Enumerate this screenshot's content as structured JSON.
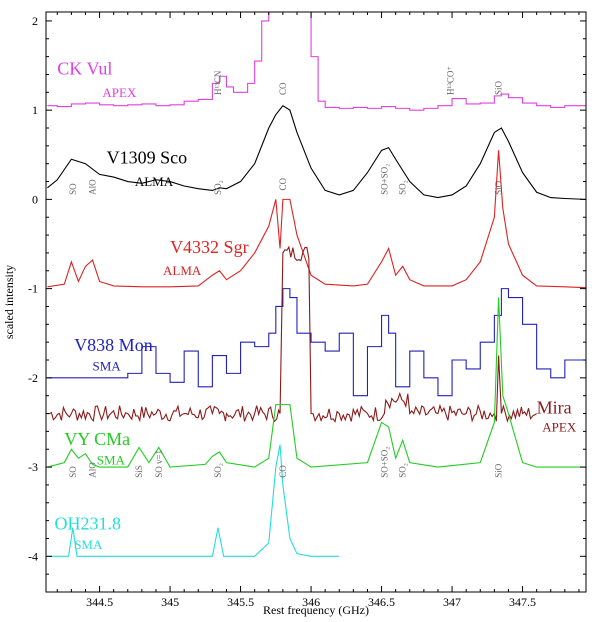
{
  "chart_data": {
    "type": "line",
    "xlabel": "Rest frequency (GHz)",
    "ylabel": "scaled intensity",
    "xlim": [
      344.12,
      347.95
    ],
    "ylim": [
      -4.4,
      2.1
    ],
    "x_ticks": [
      344.5,
      345,
      345.5,
      346,
      346.5,
      347,
      347.5
    ],
    "x_tick_labels": [
      "344.5",
      "345",
      "345.5",
      "346",
      "346.5",
      "347",
      "347.5"
    ],
    "y_ticks": [
      -4,
      -3,
      -2,
      -1,
      0,
      1,
      2
    ],
    "y_tick_labels": [
      "-4",
      "-3",
      "-2",
      "-1",
      "0",
      "1",
      "2"
    ],
    "grid": false,
    "series": [
      {
        "name": "CK Vul",
        "instrument": "APEX",
        "color": "#e040e0",
        "style": "step",
        "x": [
          344.13,
          344.2,
          344.3,
          344.4,
          344.5,
          344.6,
          344.7,
          344.8,
          344.9,
          345.0,
          345.1,
          345.2,
          345.3,
          345.35,
          345.4,
          345.45,
          345.5,
          345.55,
          345.6,
          345.65,
          345.7,
          345.75,
          345.8,
          345.85,
          345.9,
          345.95,
          346.0,
          346.05,
          346.1,
          346.2,
          346.3,
          346.4,
          346.5,
          346.6,
          346.7,
          346.8,
          346.9,
          347.0,
          347.1,
          347.2,
          347.3,
          347.35,
          347.4,
          347.5,
          347.6,
          347.7,
          347.8,
          347.95
        ],
        "y": [
          1.05,
          1.04,
          1.07,
          1.08,
          1.06,
          1.05,
          1.06,
          1.07,
          1.05,
          1.06,
          1.1,
          1.12,
          1.3,
          1.38,
          1.26,
          1.2,
          1.2,
          1.3,
          1.55,
          2.0,
          2.15,
          2.15,
          2.15,
          2.15,
          2.15,
          2.15,
          1.6,
          1.1,
          1.03,
          1.02,
          1.03,
          1.02,
          1.04,
          1.02,
          1.0,
          1.02,
          1.05,
          1.13,
          1.07,
          1.08,
          1.16,
          1.18,
          1.14,
          1.08,
          1.05,
          1.03,
          1.05,
          1.02
        ]
      },
      {
        "name": "V1309 Sco",
        "instrument": "ALMA",
        "color": "#000000",
        "style": "line",
        "x": [
          344.13,
          344.2,
          344.3,
          344.4,
          344.5,
          344.6,
          344.7,
          344.8,
          344.9,
          345.0,
          345.1,
          345.2,
          345.3,
          345.35,
          345.4,
          345.5,
          345.6,
          345.7,
          345.75,
          345.8,
          345.85,
          345.9,
          346.0,
          346.1,
          346.2,
          346.3,
          346.4,
          346.5,
          346.55,
          346.6,
          346.7,
          346.8,
          346.9,
          347.0,
          347.1,
          347.2,
          347.3,
          347.35,
          347.4,
          347.5,
          347.6,
          347.7,
          347.8,
          347.95
        ],
        "y": [
          0.13,
          0.22,
          0.45,
          0.4,
          0.28,
          0.25,
          0.2,
          0.18,
          0.22,
          0.2,
          0.15,
          0.12,
          0.1,
          0.13,
          0.12,
          0.2,
          0.4,
          0.8,
          0.95,
          1.05,
          1.0,
          0.75,
          0.35,
          0.1,
          0.05,
          0.1,
          0.3,
          0.55,
          0.58,
          0.45,
          0.2,
          0.05,
          0.02,
          0.05,
          0.15,
          0.4,
          0.75,
          0.8,
          0.65,
          0.3,
          0.08,
          0.02,
          0.01,
          0.0
        ]
      },
      {
        "name": "V4332 Sgr",
        "instrument": "ALMA",
        "color": "#dd2222",
        "style": "line",
        "x": [
          344.13,
          344.25,
          344.3,
          344.35,
          344.4,
          344.45,
          344.5,
          344.6,
          344.8,
          345.0,
          345.2,
          345.3,
          345.35,
          345.4,
          345.5,
          345.6,
          345.7,
          345.75,
          345.78,
          345.8,
          345.85,
          345.9,
          346.0,
          346.1,
          346.3,
          346.4,
          346.5,
          346.55,
          346.6,
          346.65,
          346.7,
          346.8,
          347.0,
          347.1,
          347.2,
          347.3,
          347.33,
          347.36,
          347.4,
          347.5,
          347.6,
          347.8,
          347.95
        ],
        "y": [
          -0.98,
          -0.95,
          -0.7,
          -0.92,
          -0.75,
          -0.68,
          -0.92,
          -0.97,
          -0.98,
          -0.98,
          -0.97,
          -0.85,
          -0.8,
          -0.9,
          -0.8,
          -0.6,
          -0.3,
          0.0,
          -0.55,
          0.0,
          0.0,
          -0.4,
          -0.85,
          -0.95,
          -0.97,
          -0.95,
          -0.7,
          -0.55,
          -0.85,
          -0.75,
          -0.9,
          -0.97,
          -0.97,
          -0.9,
          -0.7,
          -0.2,
          0.55,
          -0.1,
          -0.5,
          -0.85,
          -0.97,
          -0.98,
          -0.99
        ]
      },
      {
        "name": "V838 Mon",
        "instrument": "SMA",
        "color": "#2222bb",
        "style": "step",
        "x": [
          344.13,
          344.6,
          344.7,
          344.8,
          344.9,
          345.0,
          345.1,
          345.2,
          345.3,
          345.4,
          345.5,
          345.6,
          345.7,
          345.75,
          345.8,
          345.85,
          345.9,
          346.0,
          346.1,
          346.2,
          346.3,
          346.4,
          346.5,
          346.55,
          346.6,
          346.7,
          346.8,
          346.9,
          347.0,
          347.1,
          347.2,
          347.3,
          347.35,
          347.4,
          347.5,
          347.6,
          347.7,
          347.8,
          347.95
        ],
        "y": [
          -2.0,
          -2.0,
          -1.95,
          -1.65,
          -1.95,
          -2.05,
          -1.7,
          -2.1,
          -1.75,
          -1.95,
          -1.6,
          -1.65,
          -1.5,
          -1.2,
          -1.0,
          -1.1,
          -1.5,
          -1.6,
          -1.7,
          -1.5,
          -2.2,
          -1.65,
          -1.3,
          -1.5,
          -2.1,
          -1.7,
          -2.0,
          -2.2,
          -1.8,
          -1.9,
          -1.6,
          -1.3,
          -1.0,
          -1.1,
          -1.4,
          -1.9,
          -2.0,
          -1.8,
          -1.9
        ]
      },
      {
        "name": "Mira",
        "instrument": "APEX",
        "color": "#8b1a1a",
        "style": "noise",
        "x": [
          344.13,
          344.3,
          344.5,
          344.7,
          344.9,
          345.1,
          345.3,
          345.35,
          345.4,
          345.6,
          345.78,
          345.8,
          346.0,
          346.2,
          346.4,
          346.52,
          346.53,
          346.7,
          346.9,
          347.1,
          347.3,
          347.33,
          347.35,
          347.5,
          347.6
        ],
        "y": [
          -2.4,
          -2.4,
          -2.4,
          -2.4,
          -2.4,
          -2.4,
          -2.4,
          -2.4,
          -2.4,
          -2.4,
          -2.4,
          -0.6,
          -2.4,
          -2.4,
          -2.4,
          -2.4,
          -2.25,
          -2.4,
          -2.4,
          -2.4,
          -2.4,
          -1.75,
          -2.4,
          -2.4,
          -2.4
        ]
      },
      {
        "name": "VY CMa",
        "instrument": "SMA",
        "color": "#22cc22",
        "style": "line",
        "x": [
          344.13,
          344.25,
          344.3,
          344.35,
          344.4,
          344.45,
          344.5,
          344.7,
          344.78,
          344.85,
          344.92,
          345.0,
          345.25,
          345.3,
          345.35,
          345.4,
          345.6,
          345.7,
          345.75,
          345.78,
          345.8,
          345.85,
          345.9,
          346.0,
          346.4,
          346.5,
          346.55,
          346.6,
          346.65,
          346.7,
          346.9,
          347.2,
          347.3,
          347.33,
          347.36,
          347.4,
          347.5,
          347.6,
          347.8,
          347.95
        ],
        "y": [
          -3.0,
          -2.95,
          -2.8,
          -2.9,
          -2.85,
          -2.97,
          -3.0,
          -3.0,
          -2.78,
          -2.95,
          -2.78,
          -3.0,
          -2.97,
          -2.88,
          -2.83,
          -2.95,
          -3.0,
          -2.9,
          -2.3,
          -2.3,
          -2.3,
          -2.3,
          -2.9,
          -3.0,
          -2.95,
          -2.5,
          -2.55,
          -2.9,
          -2.7,
          -2.95,
          -3.0,
          -2.95,
          -2.5,
          -1.1,
          -2.2,
          -2.4,
          -2.95,
          -3.0,
          -3.0,
          -3.0
        ]
      },
      {
        "name": "OH231.8",
        "instrument": "SMA",
        "color": "#22dddd",
        "style": "line",
        "x": [
          344.13,
          344.28,
          344.31,
          344.34,
          344.5,
          345.0,
          345.3,
          345.34,
          345.38,
          345.6,
          345.7,
          345.75,
          345.78,
          345.8,
          345.85,
          345.9,
          346.0,
          346.1,
          346.2
        ],
        "y": [
          -4.0,
          -4.0,
          -3.68,
          -4.0,
          -4.0,
          -4.0,
          -4.0,
          -3.68,
          -4.0,
          -4.0,
          -3.85,
          -3.0,
          -2.75,
          -3.2,
          -3.8,
          -3.97,
          -4.0,
          -4.0,
          -4.0
        ]
      }
    ],
    "series_labels": [
      {
        "name": "CK Vul",
        "instrument": "APEX",
        "color": "#e040e0"
      },
      {
        "name": "V1309 Sco",
        "instrument": "ALMA",
        "color": "#000000"
      },
      {
        "name": "V4332 Sgr",
        "instrument": "ALMA",
        "color": "#dd2222"
      },
      {
        "name": "V838 Mon",
        "instrument": "SMA",
        "color": "#2222bb"
      },
      {
        "name": "Mira",
        "instrument": "APEX",
        "color": "#8b1a1a"
      },
      {
        "name": "VY CMa",
        "instrument": "SMA",
        "color": "#22cc22"
      },
      {
        "name": "OH231.8",
        "instrument": "SMA",
        "color": "#22dddd"
      }
    ],
    "annotations": [
      {
        "text": "H13CN",
        "x": 345.34,
        "y": 1.17,
        "color": "#666666"
      },
      {
        "text": "CO",
        "x": 345.8,
        "y": 1.17,
        "color": "#666666"
      },
      {
        "text": "H13CO+",
        "x": 346.99,
        "y": 1.17,
        "color": "#666666"
      },
      {
        "text": "SiO",
        "x": 347.33,
        "y": 1.17,
        "color": "#666666"
      },
      {
        "text": "SO",
        "x": 344.31,
        "y": 0.05,
        "color": "#666666"
      },
      {
        "text": "AlO",
        "x": 344.45,
        "y": 0.05,
        "color": "#666666"
      },
      {
        "text": "SO2",
        "x": 345.34,
        "y": 0.05,
        "color": "#666666"
      },
      {
        "text": "CO",
        "x": 345.8,
        "y": 0.1,
        "color": "#666666"
      },
      {
        "text": "SO+SO2",
        "x": 346.52,
        "y": 0.05,
        "color": "#666666"
      },
      {
        "text": "SO2",
        "x": 346.65,
        "y": 0.05,
        "color": "#666666"
      },
      {
        "text": "SiO",
        "x": 347.33,
        "y": 0.05,
        "color": "#666666"
      },
      {
        "text": "SO",
        "x": 344.31,
        "y": -3.12,
        "color": "#666666"
      },
      {
        "text": "AlO",
        "x": 344.45,
        "y": -3.12,
        "color": "#666666"
      },
      {
        "text": "SiS",
        "x": 344.78,
        "y": -3.12,
        "color": "#666666"
      },
      {
        "text": "SO v=1",
        "x": 344.92,
        "y": -3.12,
        "color": "#666666"
      },
      {
        "text": "SO2",
        "x": 345.34,
        "y": -3.12,
        "color": "#666666"
      },
      {
        "text": "CO",
        "x": 345.8,
        "y": -3.12,
        "color": "#666666"
      },
      {
        "text": "SO+SO2",
        "x": 346.52,
        "y": -3.12,
        "color": "#666666"
      },
      {
        "text": "SO2",
        "x": 346.65,
        "y": -3.12,
        "color": "#666666"
      },
      {
        "text": "SiO",
        "x": 347.33,
        "y": -3.12,
        "color": "#666666"
      }
    ]
  }
}
